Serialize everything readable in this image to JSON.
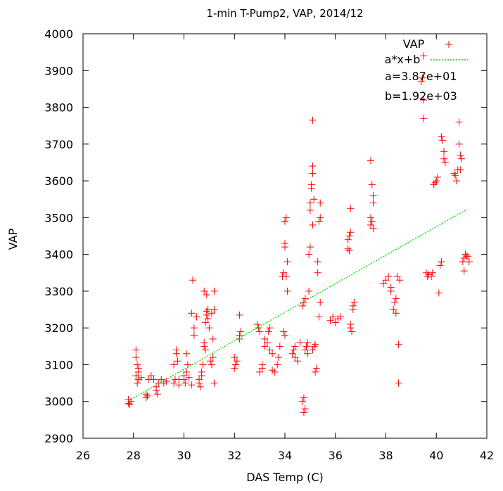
{
  "chart_data": {
    "type": "scatter",
    "title": "1-min T-Pump2, VAP, 2014/12",
    "xlabel": "DAS Temp (C)",
    "ylabel": "VAP",
    "xlim": [
      26,
      42
    ],
    "ylim": [
      2900,
      4000
    ],
    "xticks": [
      "26",
      "28",
      "30",
      "32",
      "34",
      "36",
      "38",
      "40",
      "42"
    ],
    "yticks": [
      "2900",
      "3000",
      "3100",
      "3200",
      "3300",
      "3400",
      "3500",
      "3600",
      "3700",
      "3800",
      "3900",
      "4000"
    ],
    "grid": false,
    "legend_position": "top-right",
    "series": [
      {
        "name": "VAP",
        "marker": "plus",
        "color": "#ff0000",
        "points": [
          [
            27.8,
            2995
          ],
          [
            27.8,
            3005
          ],
          [
            27.9,
            3000
          ],
          [
            27.85,
            2992
          ],
          [
            28.1,
            3140
          ],
          [
            28.1,
            3120
          ],
          [
            28.15,
            3100
          ],
          [
            28.2,
            3090
          ],
          [
            28.2,
            3080
          ],
          [
            28.1,
            3070
          ],
          [
            28.2,
            3060
          ],
          [
            28.15,
            3050
          ],
          [
            28.3,
            3065
          ],
          [
            28.5,
            3010
          ],
          [
            28.5,
            3020
          ],
          [
            28.55,
            3015
          ],
          [
            28.6,
            3060
          ],
          [
            28.7,
            3070
          ],
          [
            28.8,
            3060
          ],
          [
            28.9,
            3030
          ],
          [
            28.9,
            3040
          ],
          [
            28.95,
            3020
          ],
          [
            29.0,
            3050
          ],
          [
            29.1,
            3060
          ],
          [
            29.2,
            3050
          ],
          [
            29.3,
            3055
          ],
          [
            29.6,
            3100
          ],
          [
            29.6,
            3050
          ],
          [
            29.65,
            3060
          ],
          [
            29.7,
            3130
          ],
          [
            29.7,
            3140
          ],
          [
            29.75,
            3110
          ],
          [
            29.8,
            3060
          ],
          [
            29.8,
            3045
          ],
          [
            30.0,
            3060
          ],
          [
            30.0,
            3070
          ],
          [
            30.05,
            3050
          ],
          [
            30.1,
            3080
          ],
          [
            30.1,
            3130
          ],
          [
            30.15,
            3100
          ],
          [
            30.2,
            3065
          ],
          [
            30.3,
            3045
          ],
          [
            30.3,
            3240
          ],
          [
            30.35,
            3330
          ],
          [
            30.4,
            3200
          ],
          [
            30.4,
            3180
          ],
          [
            30.5,
            3230
          ],
          [
            30.6,
            3050
          ],
          [
            30.6,
            3060
          ],
          [
            30.65,
            3040
          ],
          [
            30.7,
            3070
          ],
          [
            30.7,
            3080
          ],
          [
            30.75,
            3100
          ],
          [
            30.8,
            3150
          ],
          [
            30.8,
            3160
          ],
          [
            30.85,
            3140
          ],
          [
            30.9,
            3235
          ],
          [
            30.9,
            3245
          ],
          [
            30.95,
            3250
          ],
          [
            30.95,
            3225
          ],
          [
            30.8,
            3300
          ],
          [
            30.9,
            3290
          ],
          [
            30.85,
            3215
          ],
          [
            31.0,
            3200
          ],
          [
            31.05,
            3110
          ],
          [
            31.1,
            3100
          ],
          [
            31.15,
            3120
          ],
          [
            31.2,
            3300
          ],
          [
            31.1,
            3240
          ],
          [
            31.2,
            3250
          ],
          [
            31.15,
            3170
          ],
          [
            31.2,
            3050
          ],
          [
            32.0,
            3120
          ],
          [
            32.05,
            3100
          ],
          [
            32.0,
            3090
          ],
          [
            32.1,
            3110
          ],
          [
            32.2,
            3170
          ],
          [
            32.2,
            3180
          ],
          [
            32.25,
            3190
          ],
          [
            32.2,
            3235
          ],
          [
            32.9,
            3210
          ],
          [
            32.95,
            3200
          ],
          [
            33.0,
            3190
          ],
          [
            33.0,
            3080
          ],
          [
            33.1,
            3090
          ],
          [
            33.1,
            3100
          ],
          [
            33.2,
            3150
          ],
          [
            33.2,
            3170
          ],
          [
            33.3,
            3160
          ],
          [
            33.35,
            3190
          ],
          [
            33.4,
            3200
          ],
          [
            33.4,
            3140
          ],
          [
            33.5,
            3130
          ],
          [
            33.5,
            3085
          ],
          [
            33.6,
            3080
          ],
          [
            33.7,
            3100
          ],
          [
            33.75,
            3120
          ],
          [
            33.8,
            3150
          ],
          [
            33.9,
            3340
          ],
          [
            33.95,
            3350
          ],
          [
            34.0,
            3420
          ],
          [
            34.0,
            3430
          ],
          [
            34.05,
            3340
          ],
          [
            34.0,
            3490
          ],
          [
            34.05,
            3500
          ],
          [
            34.1,
            3380
          ],
          [
            33.95,
            3190
          ],
          [
            34.0,
            3180
          ],
          [
            34.1,
            3300
          ],
          [
            34.3,
            3130
          ],
          [
            34.35,
            3140
          ],
          [
            34.4,
            3150
          ],
          [
            34.4,
            3120
          ],
          [
            34.5,
            3110
          ],
          [
            34.6,
            3160
          ],
          [
            34.7,
            3000
          ],
          [
            34.75,
            3010
          ],
          [
            34.75,
            2970
          ],
          [
            34.8,
            2980
          ],
          [
            34.7,
            3260
          ],
          [
            34.75,
            3270
          ],
          [
            34.8,
            3280
          ],
          [
            34.8,
            3140
          ],
          [
            34.85,
            3150
          ],
          [
            34.9,
            3160
          ],
          [
            34.9,
            3130
          ],
          [
            34.95,
            3300
          ],
          [
            34.95,
            3400
          ],
          [
            35.0,
            3420
          ],
          [
            35.0,
            3520
          ],
          [
            35.05,
            3580
          ],
          [
            35.05,
            3590
          ],
          [
            35.0,
            3540
          ],
          [
            35.1,
            3620
          ],
          [
            35.1,
            3640
          ],
          [
            35.1,
            3765
          ],
          [
            35.15,
            3550
          ],
          [
            35.1,
            3480
          ],
          [
            35.1,
            3140
          ],
          [
            35.15,
            3150
          ],
          [
            35.2,
            3155
          ],
          [
            35.2,
            3080
          ],
          [
            35.25,
            3090
          ],
          [
            35.3,
            3350
          ],
          [
            35.3,
            3380
          ],
          [
            35.35,
            3490
          ],
          [
            35.4,
            3500
          ],
          [
            35.4,
            3540
          ],
          [
            35.35,
            3230
          ],
          [
            35.4,
            3270
          ],
          [
            35.8,
            3220
          ],
          [
            35.9,
            3230
          ],
          [
            36.0,
            3215
          ],
          [
            36.1,
            3225
          ],
          [
            36.2,
            3230
          ],
          [
            36.5,
            3440
          ],
          [
            36.55,
            3450
          ],
          [
            36.6,
            3460
          ],
          [
            36.5,
            3415
          ],
          [
            36.6,
            3525
          ],
          [
            36.55,
            3410
          ],
          [
            36.6,
            3200
          ],
          [
            36.6,
            3210
          ],
          [
            36.65,
            3190
          ],
          [
            36.7,
            3250
          ],
          [
            36.75,
            3270
          ],
          [
            36.7,
            3260
          ],
          [
            37.4,
            3480
          ],
          [
            37.45,
            3490
          ],
          [
            37.4,
            3500
          ],
          [
            37.5,
            3540
          ],
          [
            37.5,
            3560
          ],
          [
            37.45,
            3590
          ],
          [
            37.4,
            3655
          ],
          [
            37.5,
            3470
          ],
          [
            37.9,
            3320
          ],
          [
            38.0,
            3330
          ],
          [
            38.1,
            3340
          ],
          [
            38.2,
            3300
          ],
          [
            38.2,
            3310
          ],
          [
            38.3,
            3250
          ],
          [
            38.35,
            3270
          ],
          [
            38.4,
            3280
          ],
          [
            38.4,
            3240
          ],
          [
            38.45,
            3340
          ],
          [
            38.5,
            3155
          ],
          [
            38.5,
            3050
          ],
          [
            38.55,
            3330
          ],
          [
            39.4,
            3870
          ],
          [
            39.45,
            3880
          ],
          [
            39.5,
            3940
          ],
          [
            39.5,
            3820
          ],
          [
            39.5,
            3770
          ],
          [
            39.6,
            3350
          ],
          [
            39.65,
            3340
          ],
          [
            39.7,
            3345
          ],
          [
            39.8,
            3340
          ],
          [
            39.85,
            3350
          ],
          [
            39.9,
            3590
          ],
          [
            39.95,
            3595
          ],
          [
            40.0,
            3600
          ],
          [
            40.05,
            3610
          ],
          [
            40.1,
            3295
          ],
          [
            40.15,
            3370
          ],
          [
            40.2,
            3380
          ],
          [
            40.2,
            3720
          ],
          [
            40.25,
            3710
          ],
          [
            40.3,
            3680
          ],
          [
            40.3,
            3660
          ],
          [
            40.35,
            3650
          ],
          [
            40.7,
            3620
          ],
          [
            40.75,
            3615
          ],
          [
            40.8,
            3600
          ],
          [
            40.85,
            3630
          ],
          [
            40.9,
            3760
          ],
          [
            40.9,
            3700
          ],
          [
            40.95,
            3670
          ],
          [
            41.0,
            3660
          ],
          [
            40.95,
            3630
          ],
          [
            41.05,
            3380
          ],
          [
            41.1,
            3390
          ],
          [
            41.15,
            3400
          ],
          [
            41.2,
            3395
          ],
          [
            41.25,
            3395
          ],
          [
            41.1,
            3355
          ],
          [
            41.3,
            3380
          ]
        ]
      },
      {
        "name": "a*x+b",
        "type": "line",
        "color": "#00dd00",
        "dashed": true,
        "points": [
          [
            27.8,
            3002
          ],
          [
            41.2,
            3522
          ]
        ]
      }
    ],
    "annotations": [
      "a=3.87e+01",
      "b=1.92e+03"
    ]
  }
}
